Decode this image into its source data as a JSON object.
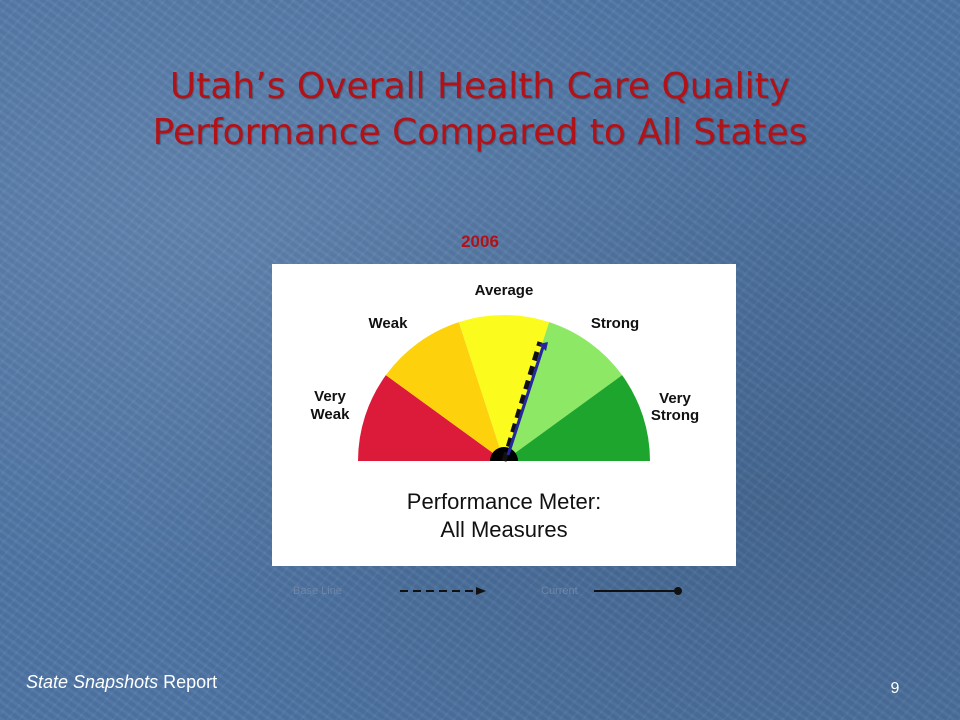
{
  "slide": {
    "title_line1": "Utah’s Overall Health Care Quality",
    "title_line2": "Performance Compared to All States",
    "year": "2006",
    "page_number": "9"
  },
  "meter": {
    "segments": [
      {
        "label": "Very Weak",
        "color": "#dc1a3a"
      },
      {
        "label": "Weak",
        "color": "#fdd20c"
      },
      {
        "label": "Average",
        "color": "#fcfb1e"
      },
      {
        "label": "Strong",
        "color": "#8de866"
      },
      {
        "label": "Very Strong",
        "color": "#1ea52d"
      }
    ],
    "labels": {
      "very_weak_1": "Very",
      "very_weak_2": "Weak",
      "weak": "Weak",
      "average": "Average",
      "strong": "Strong",
      "very_strong_1": "Very",
      "very_strong_2": "Strong"
    },
    "caption_line1": "Performance Meter:",
    "caption_line2": "All Measures",
    "baseline_needle_color": "#111111",
    "current_needle_color": "#2626a0"
  },
  "legend": {
    "baseline_label": "Base Line",
    "current_label": "Current"
  },
  "footer": {
    "source_italic": "State Snapshots",
    "source_rest": " Report"
  }
}
